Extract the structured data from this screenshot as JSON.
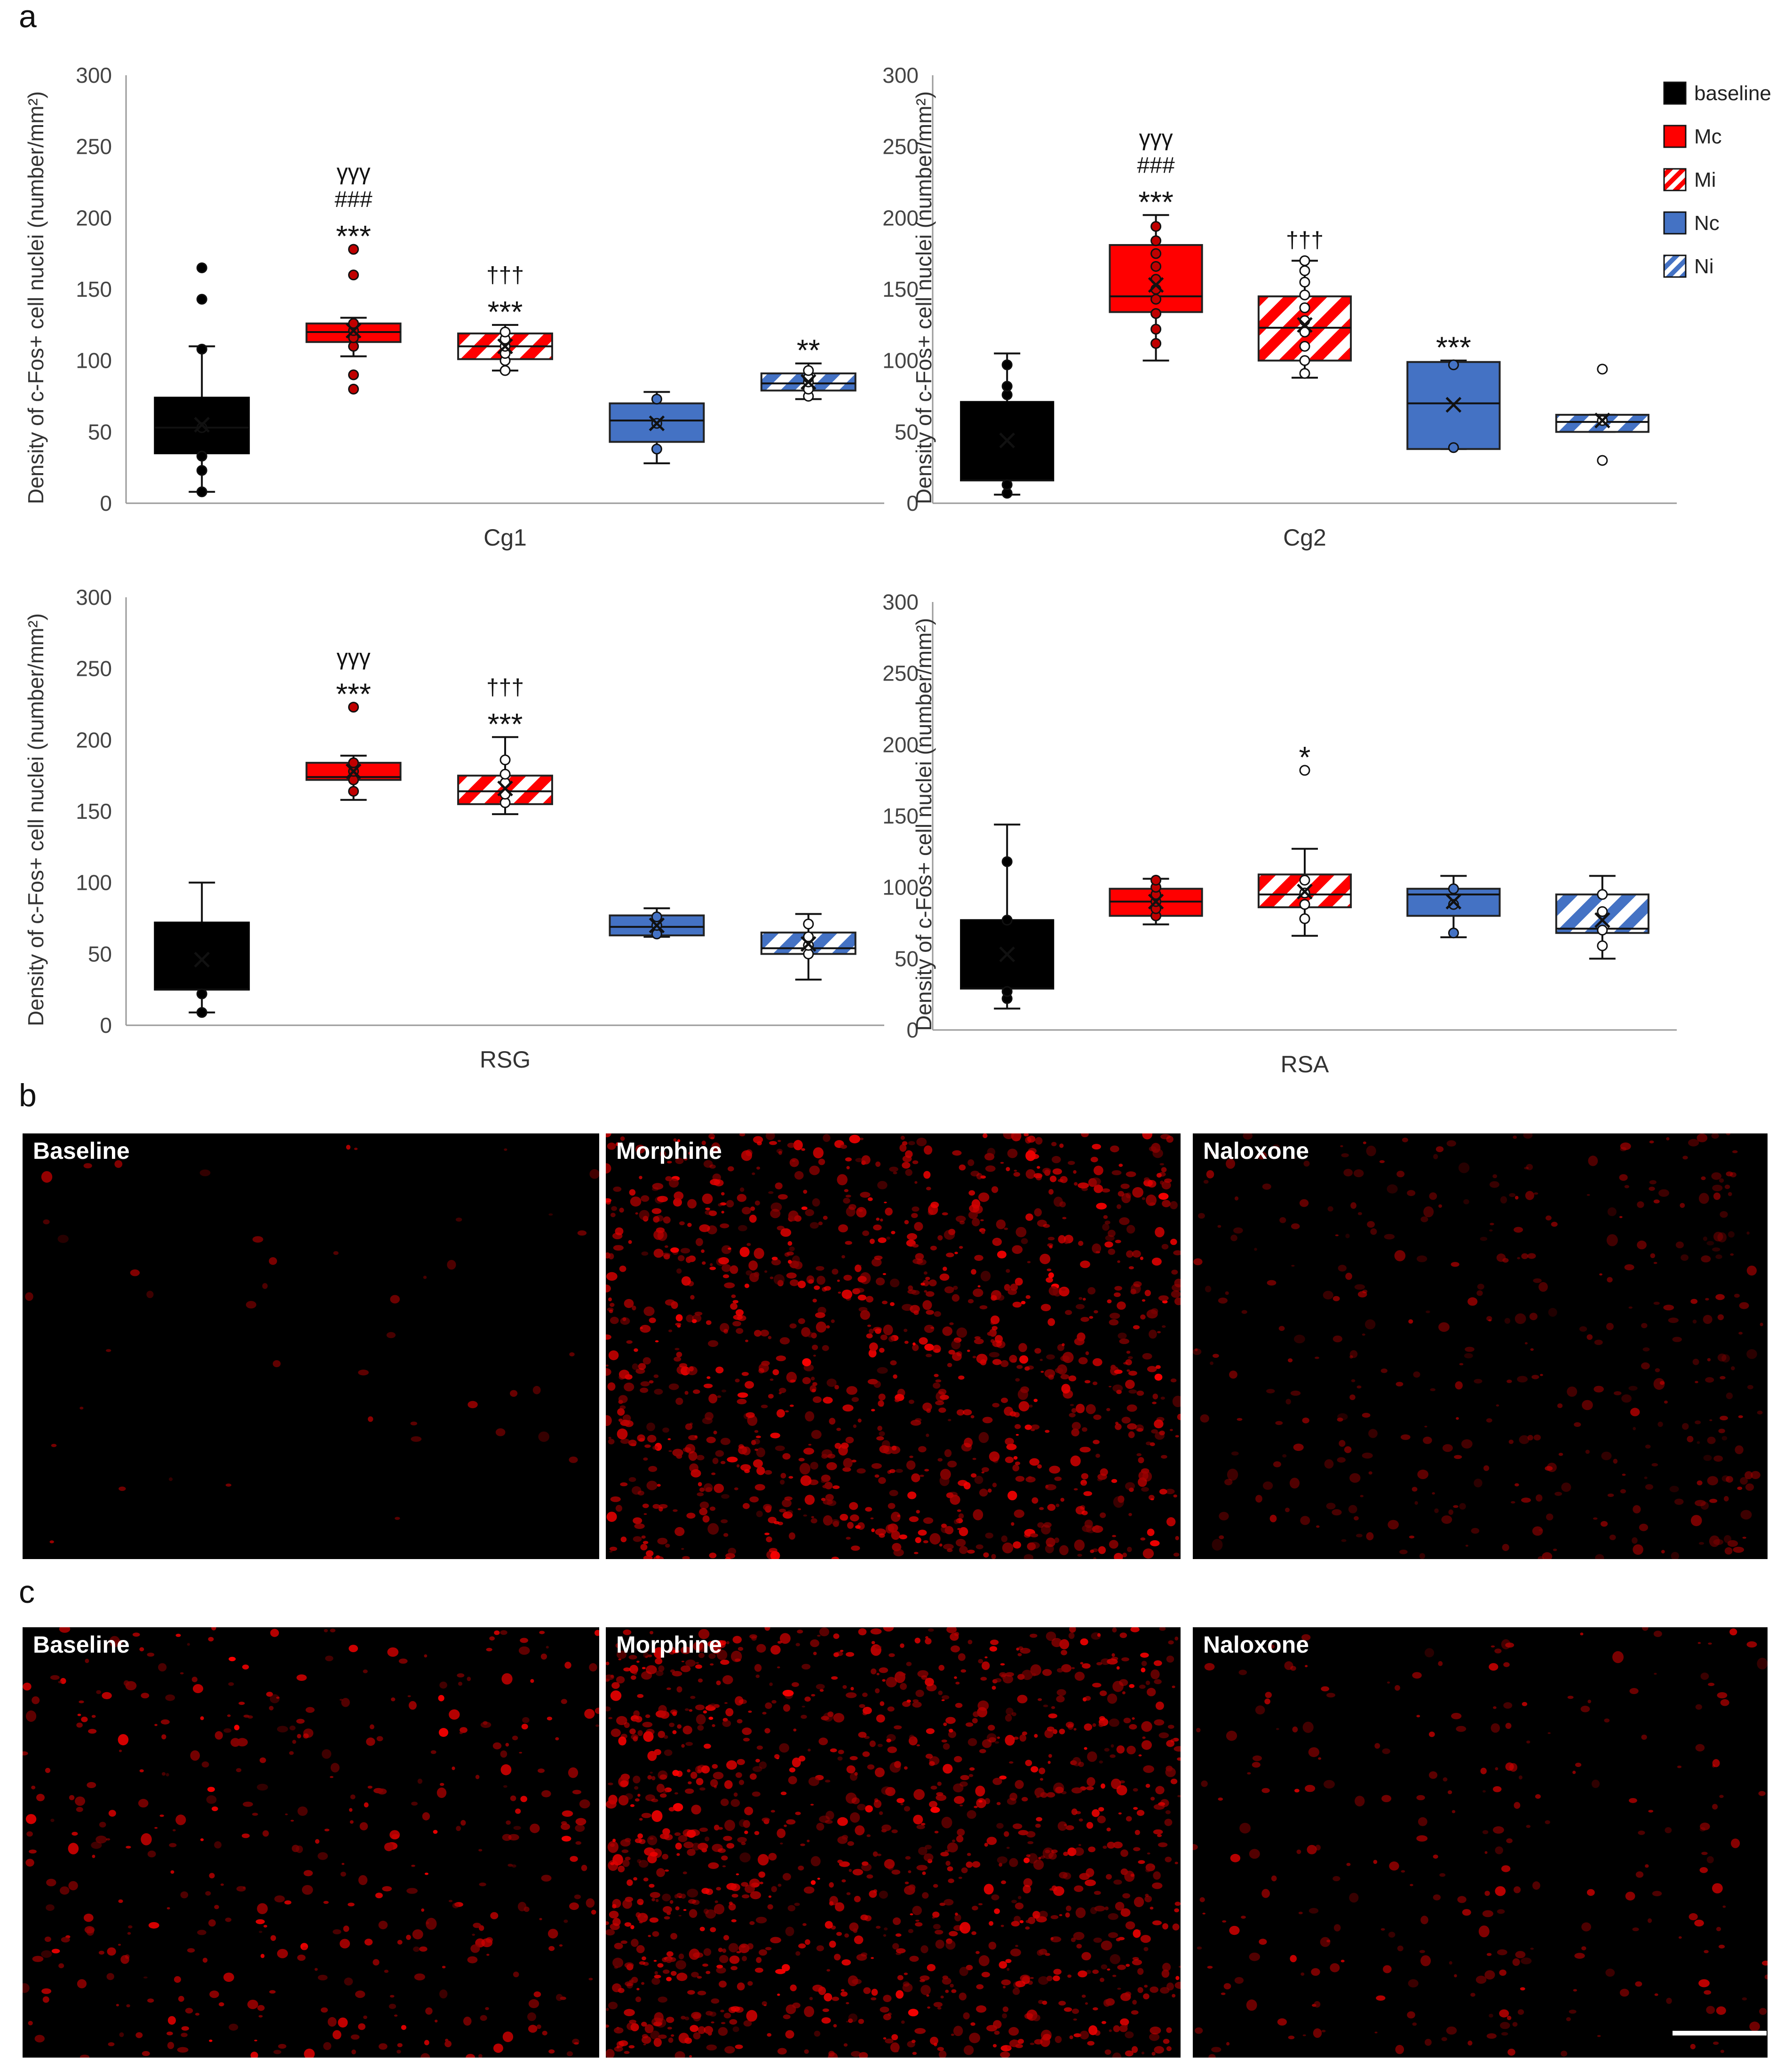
{
  "panels": {
    "a": "a",
    "b": "b",
    "c": "c"
  },
  "legend": [
    {
      "label": "baseline",
      "fill": "#000000",
      "hatch": false
    },
    {
      "label": "Mc",
      "fill": "#ff0000",
      "hatch": false
    },
    {
      "label": "Mi",
      "fill": "#ff0000",
      "hatch": true
    },
    {
      "label": "Nc",
      "fill": "#4472c4",
      "hatch": false
    },
    {
      "label": "Ni",
      "fill": "#4472c4",
      "hatch": true
    }
  ],
  "colors": {
    "baseline": "#000000",
    "morphine": "#ff0000",
    "naloxone": "#4472c4"
  },
  "chart_data": [
    {
      "type": "box",
      "xlabel": "Cg1",
      "ylabel": "Density of c-Fos+ cell nuclei (number/mm²)",
      "ylim": [
        0,
        300
      ],
      "yticks": [
        0,
        50,
        100,
        150,
        200,
        250,
        300
      ],
      "groups": [
        {
          "name": "baseline",
          "whisker_low": 8,
          "q1": 35,
          "median": 53,
          "q3": 74,
          "whisker_high": 110,
          "mean": 55,
          "points": [
            8,
            23,
            33,
            53,
            108,
            143,
            165
          ],
          "sig": []
        },
        {
          "name": "Mc",
          "whisker_low": 103,
          "q1": 113,
          "median": 120,
          "q3": 126,
          "whisker_high": 130,
          "mean": 121,
          "points": [
            80,
            90,
            110,
            116,
            121,
            126,
            160,
            178
          ],
          "sig": [
            "γγγ",
            "###",
            "***"
          ]
        },
        {
          "name": "Mi",
          "whisker_low": 93,
          "q1": 101,
          "median": 110,
          "q3": 119,
          "whisker_high": 125,
          "mean": 110,
          "points": [
            93,
            100,
            105,
            110,
            115,
            120
          ],
          "sig": [
            "†††",
            "***"
          ]
        },
        {
          "name": "Nc",
          "whisker_low": 28,
          "q1": 43,
          "median": 58,
          "q3": 70,
          "whisker_high": 78,
          "mean": 56,
          "points": [
            38,
            56,
            73
          ],
          "sig": []
        },
        {
          "name": "Ni",
          "whisker_low": 73,
          "q1": 79,
          "median": 84,
          "q3": 91,
          "whisker_high": 98,
          "mean": 85,
          "points": [
            75,
            80,
            85,
            88,
            93
          ],
          "sig": [
            "**"
          ]
        }
      ]
    },
    {
      "type": "box",
      "xlabel": "Cg2",
      "ylabel": "Density of c-Fos+ cell nuclei (number/mm²)",
      "ylim": [
        0,
        300
      ],
      "yticks": [
        0,
        50,
        100,
        150,
        200,
        250,
        300
      ],
      "groups": [
        {
          "name": "baseline",
          "whisker_low": 6,
          "q1": 16,
          "median": 16,
          "q3": 71,
          "whisker_high": 105,
          "mean": 44,
          "points": [
            7,
            13,
            76,
            82,
            97
          ],
          "sig": []
        },
        {
          "name": "Mc",
          "whisker_low": 100,
          "q1": 134,
          "median": 145,
          "q3": 181,
          "whisker_high": 202,
          "mean": 153,
          "points": [
            112,
            122,
            133,
            143,
            150,
            157,
            166,
            175,
            184,
            194
          ],
          "sig": [
            "γγγ",
            "###",
            "***"
          ]
        },
        {
          "name": "Mi",
          "whisker_low": 88,
          "q1": 100,
          "median": 123,
          "q3": 145,
          "whisker_high": 170,
          "mean": 125,
          "points": [
            91,
            100,
            110,
            120,
            128,
            137,
            146,
            155,
            163,
            170
          ],
          "sig": [
            "†††"
          ]
        },
        {
          "name": "Nc",
          "whisker_low": 38,
          "q1": 38,
          "median": 70,
          "q3": 99,
          "whisker_high": 100,
          "mean": 69,
          "points": [
            39,
            97
          ],
          "sig": [
            "***"
          ]
        },
        {
          "name": "Ni",
          "whisker_low": 50,
          "q1": 50,
          "median": 57,
          "q3": 62,
          "whisker_high": 62,
          "mean": 58,
          "points": [
            30,
            58,
            94
          ],
          "sig": []
        }
      ]
    },
    {
      "type": "box",
      "xlabel": "RSG",
      "ylabel": "Density of c-Fos+ cell nuclei (number/mm²)",
      "ylim": [
        0,
        300
      ],
      "yticks": [
        0,
        50,
        100,
        150,
        200,
        250,
        300
      ],
      "groups": [
        {
          "name": "baseline",
          "whisker_low": 9,
          "q1": 25,
          "median": 25,
          "q3": 72,
          "whisker_high": 100,
          "mean": 46,
          "points": [
            9,
            22
          ],
          "sig": []
        },
        {
          "name": "Mc",
          "whisker_low": 158,
          "q1": 172,
          "median": 174,
          "q3": 184,
          "whisker_high": 189,
          "mean": 178,
          "points": [
            164,
            172,
            178,
            184,
            223
          ],
          "sig": [
            "γγγ",
            "***"
          ]
        },
        {
          "name": "Mi",
          "whisker_low": 148,
          "q1": 155,
          "median": 164,
          "q3": 175,
          "whisker_high": 202,
          "mean": 166,
          "points": [
            156,
            162,
            170,
            176,
            186
          ],
          "sig": [
            "†††",
            "***"
          ]
        },
        {
          "name": "Nc",
          "whisker_low": 62,
          "q1": 63,
          "median": 69,
          "q3": 77,
          "whisker_high": 82,
          "mean": 70,
          "points": [
            64,
            70,
            76
          ],
          "sig": []
        },
        {
          "name": "Ni",
          "whisker_low": 32,
          "q1": 50,
          "median": 54,
          "q3": 65,
          "whisker_high": 78,
          "mean": 57,
          "points": [
            50,
            56,
            62,
            71
          ],
          "sig": []
        }
      ]
    },
    {
      "type": "box",
      "xlabel": "RSA",
      "ylabel": "Density of c-Fos+ cell nuclei (number/mm²)",
      "ylim": [
        0,
        300
      ],
      "yticks": [
        0,
        50,
        100,
        150,
        200,
        250,
        300
      ],
      "groups": [
        {
          "name": "baseline",
          "whisker_low": 15,
          "q1": 29,
          "median": 29,
          "q3": 77,
          "whisker_high": 144,
          "mean": 53,
          "points": [
            22,
            27,
            77,
            118
          ],
          "sig": []
        },
        {
          "name": "Mc",
          "whisker_low": 74,
          "q1": 80,
          "median": 90,
          "q3": 99,
          "whisker_high": 106,
          "mean": 90,
          "points": [
            80,
            85,
            90,
            95,
            100,
            105
          ],
          "sig": []
        },
        {
          "name": "Mi",
          "whisker_low": 66,
          "q1": 86,
          "median": 95,
          "q3": 109,
          "whisker_high": 127,
          "mean": 97,
          "points": [
            78,
            88,
            96,
            105,
            182
          ],
          "sig": [
            "*"
          ]
        },
        {
          "name": "Nc",
          "whisker_low": 65,
          "q1": 80,
          "median": 95,
          "q3": 99,
          "whisker_high": 108,
          "mean": 90,
          "points": [
            68,
            88,
            99
          ],
          "sig": []
        },
        {
          "name": "Ni",
          "whisker_low": 50,
          "q1": 68,
          "median": 71,
          "q3": 95,
          "whisker_high": 108,
          "mean": 77,
          "points": [
            59,
            70,
            83,
            95
          ],
          "sig": []
        }
      ]
    }
  ],
  "micrographs": {
    "b": [
      "Baseline",
      "Morphine",
      "Naloxone"
    ],
    "c": [
      "Baseline",
      "Morphine",
      "Naloxone"
    ]
  }
}
